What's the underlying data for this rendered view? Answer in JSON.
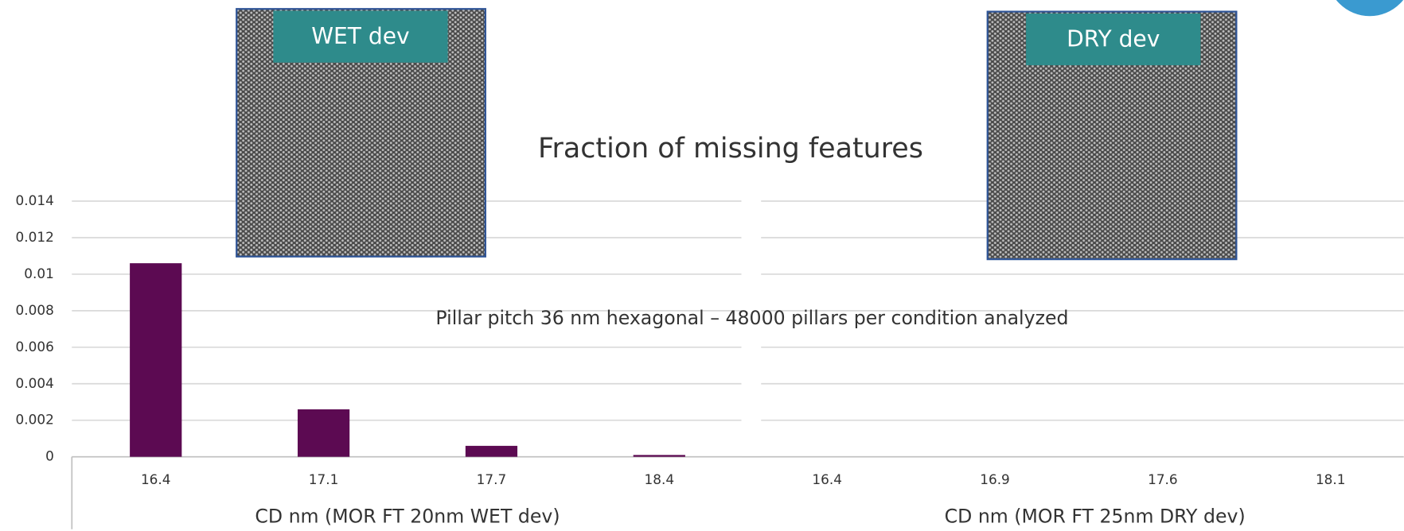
{
  "chart_data": {
    "type": "bar",
    "title": "Fraction of missing features",
    "annotation": "Pillar pitch 36 nm hexagonal – 48000 pillars per condition analyzed",
    "ylim": [
      0,
      0.014
    ],
    "yticks": [
      0,
      0.002,
      0.004,
      0.006,
      0.008,
      0.01,
      0.012,
      0.014
    ],
    "grid": true,
    "color": "#5c0a52",
    "panels": [
      {
        "xlabel": "CD nm (MOR FT 20nm WET dev)",
        "categories": [
          "16.4",
          "17.1",
          "17.7",
          "18.4"
        ],
        "values": [
          0.0106,
          0.0026,
          0.0006,
          0.0001
        ]
      },
      {
        "xlabel": "CD nm (MOR FT 25nm DRY dev)",
        "categories": [
          "16.4",
          "16.9",
          "17.6",
          "18.1"
        ],
        "values": [
          0,
          0,
          0,
          0
        ]
      }
    ],
    "insets": [
      {
        "label": "WET dev"
      },
      {
        "label": "DRY dev"
      }
    ]
  }
}
